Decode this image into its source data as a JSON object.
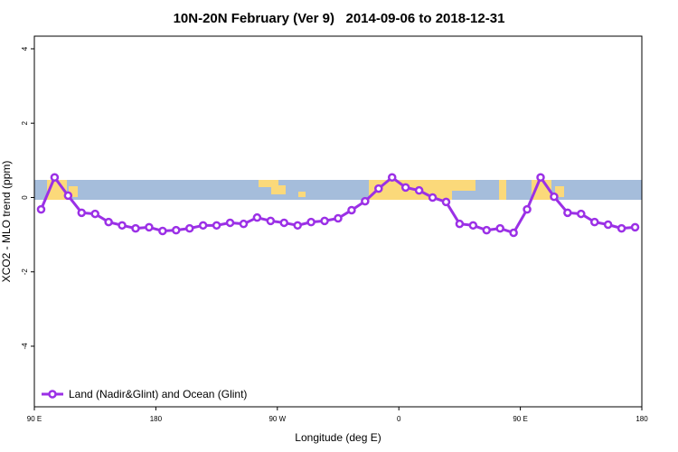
{
  "chart_data": {
    "type": "line",
    "title": "10N-20N February (Ver 9)   2014-09-06 to 2018-12-31",
    "x_label": "Longitude (deg E)",
    "y_label": "XCO2 - MLO trend (ppm)",
    "xlim": [
      90,
      540
    ],
    "xticks": [
      {
        "value": 90,
        "label": "90 E"
      },
      {
        "value": 180,
        "label": "180"
      },
      {
        "value": 270,
        "label": "90 W"
      },
      {
        "value": 360,
        "label": "0"
      },
      {
        "value": 450,
        "label": "90 E"
      },
      {
        "value": 540,
        "label": "180"
      }
    ],
    "ylim": [
      -5.63,
      4.34
    ],
    "yticks": [
      -4,
      -2,
      0,
      2,
      4
    ],
    "legend": "bottom-left",
    "series": [
      {
        "name": "Land (Nadir&Glint) and Ocean (Glint)",
        "color": "#9b30e6",
        "x": [
          95,
          105,
          115,
          125,
          135,
          145,
          155,
          165,
          175,
          185,
          195,
          205,
          215,
          225,
          235,
          245,
          255,
          265,
          275,
          285,
          295,
          305,
          315,
          325,
          335,
          345,
          355,
          365,
          375,
          385,
          395,
          405,
          415,
          425,
          435,
          445,
          455,
          465,
          475,
          485,
          495,
          505,
          515,
          525,
          535
        ],
        "values": [
          -0.32,
          0.54,
          0.05,
          -0.41,
          -0.44,
          -0.66,
          -0.75,
          -0.83,
          -0.8,
          -0.9,
          -0.88,
          -0.83,
          -0.75,
          -0.75,
          -0.68,
          -0.71,
          -0.54,
          -0.63,
          -0.68,
          -0.75,
          -0.66,
          -0.63,
          -0.56,
          -0.34,
          -0.1,
          0.24,
          0.54,
          0.27,
          0.19,
          0.0,
          -0.12,
          -0.71,
          -0.75,
          -0.88,
          -0.83,
          -0.95,
          -0.32,
          0.54,
          0.02,
          -0.41,
          -0.44,
          -0.66,
          -0.73,
          -0.83,
          -0.8
        ]
      }
    ]
  }
}
